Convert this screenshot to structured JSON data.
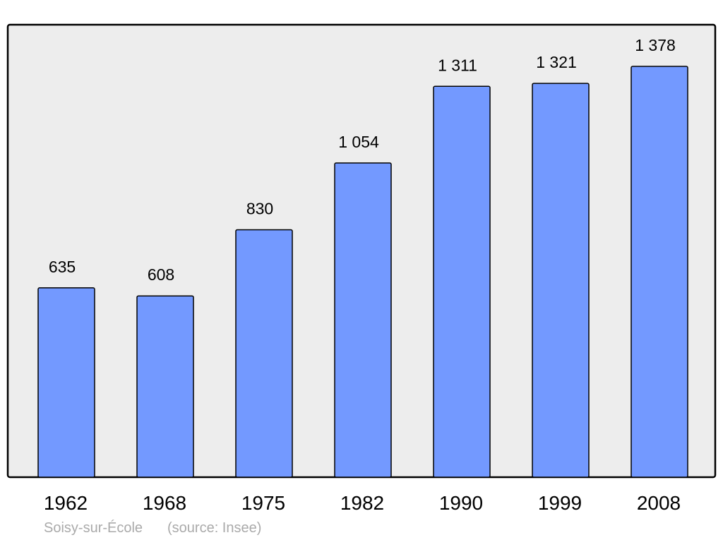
{
  "chart_data": {
    "type": "bar",
    "title": "",
    "xlabel": "",
    "ylabel": "",
    "categories": [
      "1962",
      "1968",
      "1975",
      "1982",
      "1990",
      "1999",
      "2008"
    ],
    "values": [
      635,
      608,
      830,
      1054,
      1311,
      1321,
      1378
    ],
    "data_labels": [
      "635",
      "608",
      "830",
      "1 054",
      "1 311",
      "1 321",
      "1 378"
    ],
    "ylim": [
      0,
      1378
    ],
    "grid": false,
    "colors": {
      "bar": "#7399ff",
      "background": "#ededed",
      "border": "#000000",
      "footer_text": "#aaaaaa"
    }
  },
  "footer": {
    "place": "Soisy-sur-École",
    "source": "(source: Insee)"
  }
}
